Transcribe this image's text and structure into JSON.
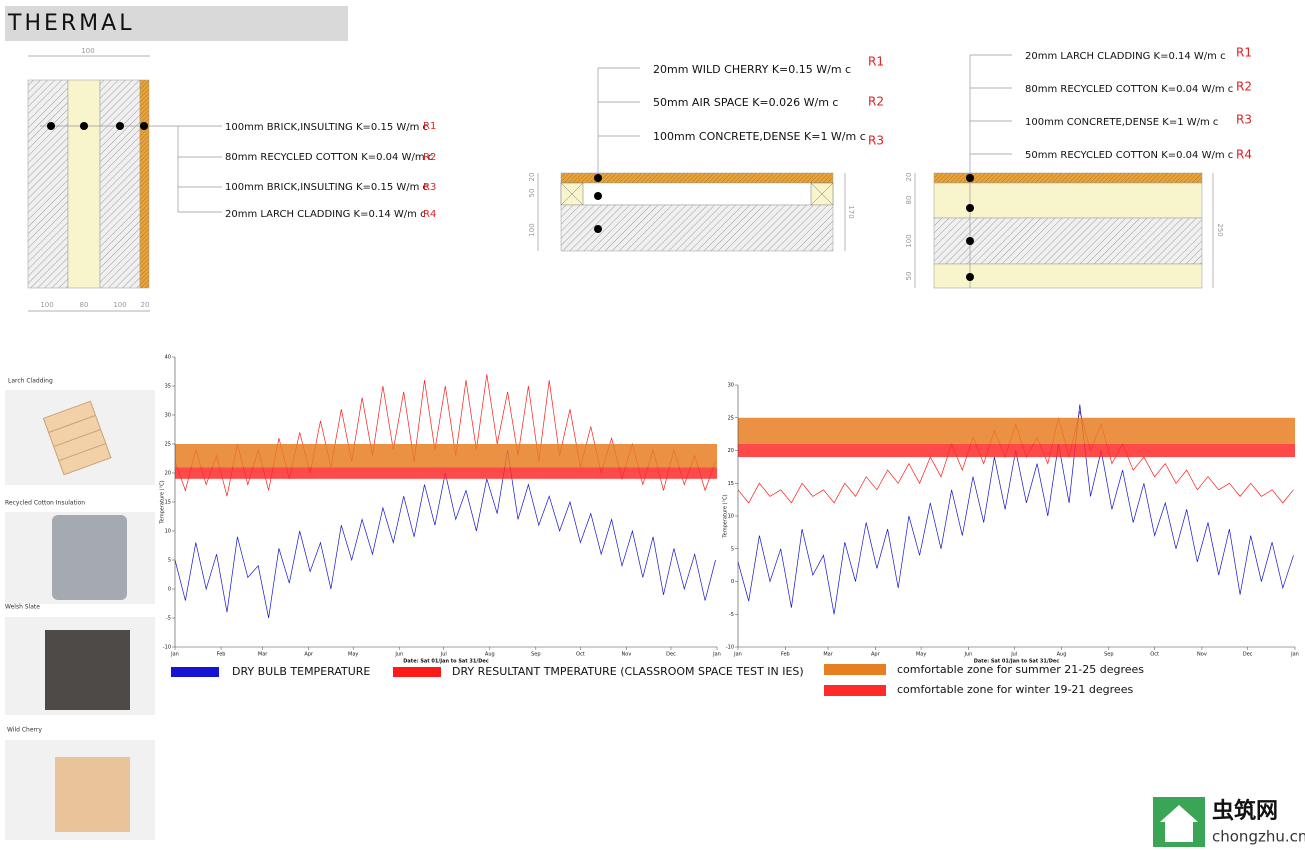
{
  "header": {
    "title": "THERMAL"
  },
  "sections": [
    {
      "layers": [
        {
          "label": "100mm BRICK,INSULTING K=0.15 W/m c",
          "ref": "R1"
        },
        {
          "label": "80mm RECYCLED COTTON K=0.04 W/m c",
          "ref": "R2"
        },
        {
          "label": "100mm BRICK,INSULTING K=0.15 W/m c",
          "ref": "R3"
        },
        {
          "label": "20mm LARCH CLADDING K=0.14 W/m c",
          "ref": "R4"
        }
      ],
      "dims": [
        "100",
        "100",
        "80",
        "100",
        "20"
      ]
    },
    {
      "layers": [
        {
          "label": "20mm WILD CHERRY K=0.15 W/m c",
          "ref": "R1"
        },
        {
          "label": "50mm AIR SPACE K=0.026 W/m c",
          "ref": "R2"
        },
        {
          "label": "100mm CONCRETE,DENSE K=1 W/m c",
          "ref": "R3"
        }
      ],
      "dims": [
        "20",
        "50",
        "100",
        "170"
      ]
    },
    {
      "layers": [
        {
          "label": "20mm LARCH CLADDING K=0.14 W/m c",
          "ref": "R1"
        },
        {
          "label": "80mm RECYCLED COTTON K=0.04 W/m c",
          "ref": "R2"
        },
        {
          "label": "100mm CONCRETE,DENSE K=1 W/m c",
          "ref": "R3"
        },
        {
          "label": "50mm RECYCLED COTTON K=0.04 W/m c",
          "ref": "R4"
        }
      ],
      "dims": [
        "20",
        "80",
        "100",
        "50",
        "250"
      ]
    }
  ],
  "materials": [
    "Larch Cladding",
    "Recycled Cotton Insulation",
    "Welsh Slate",
    "Wild Cherry"
  ],
  "chart_data": [
    {
      "type": "line",
      "y_label": "Temperature (°C)",
      "x_label": "Date: Sat 01/Jan to Sat 31/Dec",
      "x": [
        0,
        7,
        14,
        21,
        28,
        35,
        42,
        49,
        56,
        63,
        70,
        77,
        84,
        91,
        98,
        105,
        112,
        119,
        126,
        133,
        140,
        147,
        154,
        161,
        168,
        175,
        182,
        189,
        196,
        203,
        210,
        217,
        224,
        231,
        238,
        245,
        252,
        259,
        266,
        273,
        280,
        287,
        294,
        301,
        308,
        315,
        322,
        329,
        336,
        343,
        350,
        357,
        364
      ],
      "xlim": [
        0,
        365
      ],
      "xticks": [
        {
          "value": 0,
          "label": "Jan"
        },
        {
          "value": 31,
          "label": "Feb"
        },
        {
          "value": 59,
          "label": "Mar"
        },
        {
          "value": 90,
          "label": "Apr"
        },
        {
          "value": 120,
          "label": "May"
        },
        {
          "value": 151,
          "label": "Jun"
        },
        {
          "value": 181,
          "label": "Jul"
        },
        {
          "value": 212,
          "label": "Aug"
        },
        {
          "value": 243,
          "label": "Sep"
        },
        {
          "value": 273,
          "label": "Oct"
        },
        {
          "value": 304,
          "label": "Nov"
        },
        {
          "value": 334,
          "label": "Dec"
        },
        {
          "value": 365,
          "label": "Jan"
        }
      ],
      "ylim": [
        -10,
        40
      ],
      "yticks": [
        -10,
        -5,
        0,
        5,
        10,
        15,
        20,
        25,
        30,
        35,
        40
      ],
      "series": [
        {
          "name": "DRY BULB TEMPERATURE",
          "color": "#1414d2",
          "values": [
            5,
            -2,
            8,
            0,
            6,
            -4,
            9,
            2,
            4,
            -5,
            7,
            1,
            10,
            3,
            8,
            0,
            11,
            5,
            12,
            6,
            14,
            8,
            16,
            9,
            18,
            11,
            20,
            12,
            17,
            10,
            19,
            13,
            24,
            12,
            18,
            11,
            16,
            10,
            15,
            8,
            13,
            6,
            12,
            4,
            10,
            2,
            9,
            -1,
            7,
            0,
            6,
            -2,
            5
          ]
        },
        {
          "name": "DRY RESULTANT TMPERATURE (CLASSROOM SPACE TEST IN IES)",
          "color": "#ff1a1a",
          "values": [
            22,
            17,
            24,
            18,
            23,
            16,
            25,
            18,
            24,
            17,
            26,
            19,
            27,
            20,
            29,
            21,
            31,
            22,
            33,
            23,
            35,
            24,
            34,
            22,
            36,
            24,
            35,
            23,
            36,
            24,
            37,
            25,
            34,
            23,
            35,
            22,
            36,
            23,
            31,
            21,
            28,
            20,
            26,
            19,
            25,
            18,
            24,
            17,
            24,
            18,
            23,
            17,
            22
          ]
        }
      ],
      "bands": [
        {
          "name": "comfortable zone for summer 21-25 degrees",
          "color": "#e67e22",
          "from": 21,
          "to": 25
        },
        {
          "name": "comfortable zone for winter 19-21 degrees",
          "color": "#ff2a2a",
          "from": 19,
          "to": 21
        }
      ]
    },
    {
      "type": "line",
      "y_label": "Temperature (°C)",
      "x_label": "Date: Sat 01/Jan to Sat 31/Dec",
      "x": [
        0,
        7,
        14,
        21,
        28,
        35,
        42,
        49,
        56,
        63,
        70,
        77,
        84,
        91,
        98,
        105,
        112,
        119,
        126,
        133,
        140,
        147,
        154,
        161,
        168,
        175,
        182,
        189,
        196,
        203,
        210,
        217,
        224,
        231,
        238,
        245,
        252,
        259,
        266,
        273,
        280,
        287,
        294,
        301,
        308,
        315,
        322,
        329,
        336,
        343,
        350,
        357,
        364
      ],
      "xlim": [
        0,
        365
      ],
      "xticks": [
        {
          "value": 0,
          "label": "Jan"
        },
        {
          "value": 31,
          "label": "Feb"
        },
        {
          "value": 59,
          "label": "Mar"
        },
        {
          "value": 90,
          "label": "Apr"
        },
        {
          "value": 120,
          "label": "May"
        },
        {
          "value": 151,
          "label": "Jun"
        },
        {
          "value": 181,
          "label": "Jul"
        },
        {
          "value": 212,
          "label": "Aug"
        },
        {
          "value": 243,
          "label": "Sep"
        },
        {
          "value": 273,
          "label": "Oct"
        },
        {
          "value": 304,
          "label": "Nov"
        },
        {
          "value": 334,
          "label": "Dec"
        },
        {
          "value": 365,
          "label": "Jan"
        }
      ],
      "ylim": [
        -10,
        30
      ],
      "yticks": [
        -10,
        -5,
        0,
        5,
        10,
        15,
        20,
        25,
        30
      ],
      "series": [
        {
          "color": "#1414d2",
          "values": [
            3,
            -3,
            7,
            0,
            5,
            -4,
            8,
            1,
            4,
            -5,
            6,
            0,
            9,
            2,
            8,
            -1,
            10,
            4,
            12,
            5,
            14,
            7,
            16,
            9,
            19,
            11,
            20,
            12,
            18,
            10,
            21,
            12,
            27,
            13,
            20,
            11,
            17,
            9,
            15,
            7,
            12,
            5,
            11,
            3,
            9,
            1,
            8,
            -2,
            7,
            0,
            6,
            -1,
            4
          ]
        },
        {
          "color": "#ff1a1a",
          "values": [
            14,
            12,
            15,
            13,
            14,
            12,
            15,
            13,
            14,
            12,
            15,
            13,
            16,
            14,
            17,
            15,
            18,
            15,
            19,
            16,
            21,
            17,
            22,
            18,
            23,
            19,
            24,
            19,
            22,
            18,
            25,
            19,
            26,
            20,
            24,
            18,
            21,
            17,
            19,
            16,
            18,
            15,
            17,
            14,
            16,
            14,
            15,
            13,
            15,
            13,
            14,
            12,
            14
          ]
        }
      ],
      "bands": [
        {
          "color": "#e67e22",
          "from": 21,
          "to": 25
        },
        {
          "color": "#ff2a2a",
          "from": 19,
          "to": 21
        }
      ]
    }
  ],
  "watermark": {
    "name": "虫筑网",
    "url": "chongzhu.cn"
  }
}
